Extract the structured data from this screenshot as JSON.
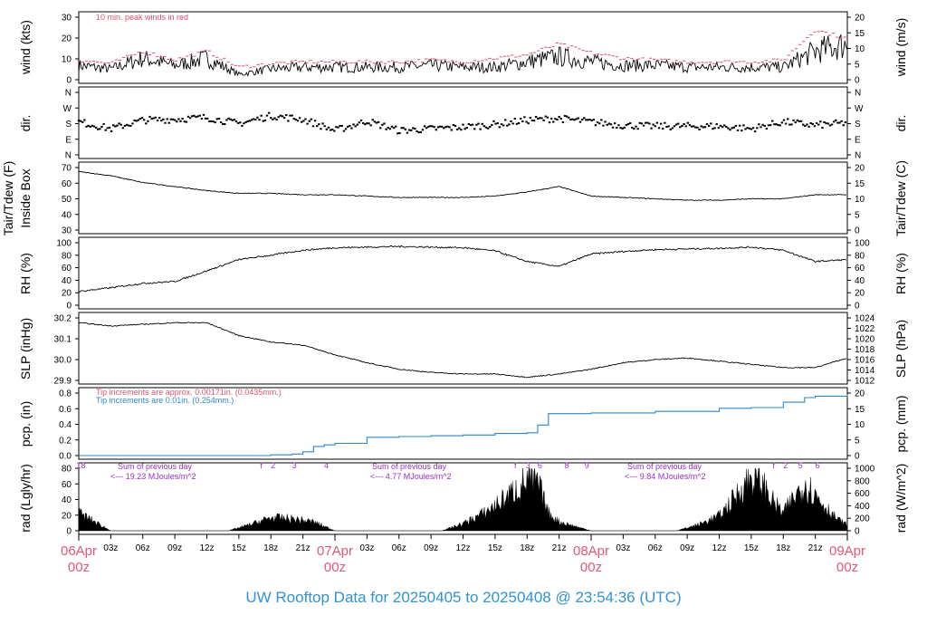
{
  "title": "UW Rooftop Data for 20250405  to  20250408 @ 23:54:36  (UTC)",
  "colors": {
    "peak": "#e0506e",
    "blue": "#2f86c8",
    "purple": "#9b2fc9",
    "day": "#e05878",
    "title": "#2f93d6",
    "line": "#000000"
  },
  "x_ticks": {
    "hours": [
      "03z",
      "06z",
      "09z",
      "12z",
      "15z",
      "18z",
      "21z",
      "03z",
      "06z",
      "09z",
      "12z",
      "15z",
      "18z",
      "21z",
      "03z",
      "06z",
      "09z",
      "12z",
      "15z",
      "18z",
      "21z"
    ],
    "days": [
      {
        "top": "06Apr",
        "bottom": "00z"
      },
      {
        "top": "07Apr",
        "bottom": "00z"
      },
      {
        "top": "08Apr",
        "bottom": "00z"
      },
      {
        "top": "09Apr",
        "bottom": "00z"
      }
    ]
  },
  "panels": {
    "wind": {
      "ylabel_left": "wind (kts)",
      "ylabel_right": "wind (m/s)",
      "left_ticks": [
        "0",
        "10",
        "20",
        "30"
      ],
      "right_ticks": [
        "0",
        "5",
        "10",
        "15",
        "20"
      ],
      "note": "10 min. peak winds in red"
    },
    "dir": {
      "ylabel_left": "dir.",
      "ylabel_right": "dir.",
      "left_ticks": [
        "N",
        "E",
        "S",
        "W",
        "N"
      ],
      "right_ticks": [
        "N",
        "E",
        "S",
        "W",
        "N"
      ]
    },
    "temp": {
      "ylabel_left_1": "Tair/Tdew (F)",
      "ylabel_left_2": "Inside Box",
      "ylabel_right": "Tair/Tdew (C)",
      "left_ticks": [
        "30",
        "40",
        "50",
        "60",
        "70"
      ],
      "right_ticks": [
        "0",
        "5",
        "10",
        "15",
        "20"
      ]
    },
    "rh": {
      "ylabel_left": "RH (%)",
      "ylabel_right": "RH (%)",
      "left_ticks": [
        "0",
        "20",
        "40",
        "60",
        "80",
        "100"
      ],
      "right_ticks": [
        "0",
        "20",
        "40",
        "60",
        "80",
        "100"
      ]
    },
    "slp": {
      "ylabel_left": "SLP (inHg)",
      "ylabel_right": "SLP (hPa)",
      "left_ticks": [
        "29.9",
        "30.0",
        "30.1",
        "30.2"
      ],
      "right_ticks": [
        "1012",
        "1014",
        "1016",
        "1018",
        "1020",
        "1022",
        "1024"
      ]
    },
    "pcp": {
      "ylabel_left": "pcp. (in)",
      "ylabel_right": "pcp. (mm)",
      "left_ticks": [
        "0.0",
        "0.2",
        "0.4",
        "0.6",
        "0.8"
      ],
      "right_ticks": [
        "0",
        "5",
        "10",
        "15",
        "20"
      ],
      "note_red": "Tip increments are approx. 0.00171in. (0.0435mm.)",
      "note_blue": "Tip increments are 0.01in. (0.254mm.)"
    },
    "rad": {
      "ylabel_left": "rad (Lgly/hr)",
      "ylabel_right": "rad (W/m^2)",
      "left_ticks": [
        "0",
        "20",
        "40",
        "60",
        "80"
      ],
      "right_ticks": [
        "0",
        "200",
        "400",
        "600",
        "800",
        "1000"
      ],
      "sums": [
        {
          "line1": "Sum of previous day",
          "line2": "<--- 19.23 MJoules/m^2"
        },
        {
          "line1": "Sum of previous day",
          "line2": "<--- 4.77 MJoules/m^2"
        },
        {
          "line1": "Sum of previous day",
          "line2": "<--- 9.84 MJoules/m^2"
        }
      ],
      "markers": [
        "18",
        "f",
        "2",
        "3",
        "4",
        "f",
        "3",
        "6",
        "8",
        "9",
        "f",
        "2",
        "5",
        "6"
      ]
    }
  },
  "chart_data": [
    {
      "type": "line",
      "name": "wind",
      "x_unit": "hours since 06Apr 00z",
      "x": [
        0,
        3,
        6,
        9,
        12,
        15,
        18,
        21,
        24,
        27,
        30,
        33,
        36,
        39,
        42,
        45,
        48,
        51,
        54,
        57,
        60,
        63,
        66,
        69,
        72
      ],
      "series": [
        {
          "values": [
            8,
            6,
            12,
            8,
            12,
            3,
            6,
            7,
            7,
            7,
            7,
            8,
            7,
            7,
            10,
            13,
            10,
            8,
            8,
            7,
            7,
            7,
            7,
            16,
            20
          ]
        },
        {
          "values": [
            11,
            9,
            16,
            11,
            16,
            7,
            9,
            10,
            10,
            10,
            10,
            11,
            10,
            12,
            14,
            20,
            15,
            12,
            11,
            10,
            10,
            10,
            11,
            28,
            23
          ]
        }
      ],
      "ylim": [
        0,
        35
      ]
    },
    {
      "type": "scatter",
      "name": "dir.",
      "x": [
        0,
        3,
        6,
        9,
        12,
        15,
        18,
        21,
        24,
        27,
        30,
        33,
        36,
        39,
        42,
        45,
        48,
        51,
        54,
        57,
        60,
        63,
        66,
        69,
        72
      ],
      "series": [
        {
          "values": [
            190,
            150,
            200,
            205,
            215,
            180,
            225,
            205,
            140,
            195,
            140,
            150,
            160,
            175,
            200,
            210,
            190,
            170,
            165,
            165,
            165,
            150,
            190,
            170,
            185
          ]
        }
      ],
      "ylim": [
        0,
        360
      ]
    },
    {
      "type": "line",
      "name": "Tair/Tdew",
      "x": [
        0,
        3,
        6,
        9,
        12,
        15,
        18,
        21,
        24,
        27,
        30,
        33,
        36,
        39,
        42,
        45,
        48,
        51,
        54,
        57,
        60,
        63,
        66,
        69,
        72
      ],
      "series": [
        {
          "values": [
            69,
            66,
            61,
            58,
            55,
            53,
            53,
            52,
            52,
            51,
            50,
            50,
            50,
            51,
            54,
            58,
            51,
            50,
            49,
            48,
            48,
            49,
            49,
            52,
            52
          ]
        }
      ],
      "ylim": [
        26,
        72
      ]
    },
    {
      "type": "line",
      "name": "RH (%)",
      "x": [
        0,
        3,
        6,
        9,
        12,
        15,
        18,
        21,
        24,
        27,
        30,
        33,
        36,
        39,
        42,
        45,
        48,
        51,
        54,
        57,
        60,
        63,
        66,
        69,
        72
      ],
      "series": [
        {
          "values": [
            22,
            28,
            35,
            38,
            55,
            73,
            80,
            88,
            92,
            93,
            94,
            93,
            92,
            87,
            70,
            62,
            82,
            86,
            89,
            90,
            91,
            93,
            88,
            70,
            73
          ]
        }
      ],
      "ylim": [
        0,
        100
      ]
    },
    {
      "type": "line",
      "name": "SLP",
      "x": [
        0,
        3,
        6,
        9,
        12,
        15,
        18,
        21,
        24,
        27,
        30,
        33,
        36,
        39,
        42,
        45,
        48,
        51,
        54,
        57,
        60,
        63,
        66,
        69,
        72
      ],
      "series": [
        {
          "values": [
            30.24,
            30.22,
            30.23,
            30.24,
            30.24,
            30.16,
            30.12,
            30.1,
            30.04,
            29.99,
            29.95,
            29.93,
            29.92,
            29.92,
            29.9,
            29.92,
            29.95,
            29.99,
            30.01,
            30.02,
            30.0,
            29.98,
            29.96,
            29.96,
            30.02
          ]
        }
      ],
      "ylim": [
        29.88,
        30.27
      ]
    },
    {
      "type": "line",
      "name": "pcp.",
      "x": [
        0,
        12,
        18,
        20,
        21,
        22,
        23,
        24,
        27,
        30,
        33,
        36,
        39,
        42,
        43,
        44,
        48,
        54,
        60,
        63,
        66,
        68,
        69,
        72
      ],
      "series": [
        {
          "values": [
            0,
            0,
            0.01,
            0.02,
            0.05,
            0.12,
            0.14,
            0.16,
            0.24,
            0.25,
            0.26,
            0.27,
            0.29,
            0.3,
            0.4,
            0.55,
            0.56,
            0.58,
            0.62,
            0.63,
            0.7,
            0.76,
            0.78,
            0.8
          ]
        }
      ],
      "ylim": [
        0,
        0.82
      ]
    },
    {
      "type": "area",
      "name": "rad",
      "x": [
        0,
        1.5,
        3,
        14,
        16,
        18,
        20,
        22,
        24,
        27,
        34,
        36,
        38,
        40,
        41,
        42,
        43,
        44,
        45,
        47,
        48,
        50,
        56,
        58,
        60,
        61,
        62,
        63,
        64,
        65,
        66,
        67,
        68,
        69,
        70,
        71,
        72
      ],
      "series": [
        {
          "values": [
            30,
            15,
            0,
            0,
            10,
            22,
            20,
            15,
            0,
            0,
            0,
            12,
            30,
            55,
            70,
            85,
            80,
            30,
            15,
            5,
            0,
            0,
            0,
            10,
            25,
            45,
            70,
            90,
            80,
            50,
            30,
            55,
            80,
            60,
            40,
            20,
            10
          ]
        }
      ],
      "ylim": [
        0,
        95
      ]
    }
  ]
}
